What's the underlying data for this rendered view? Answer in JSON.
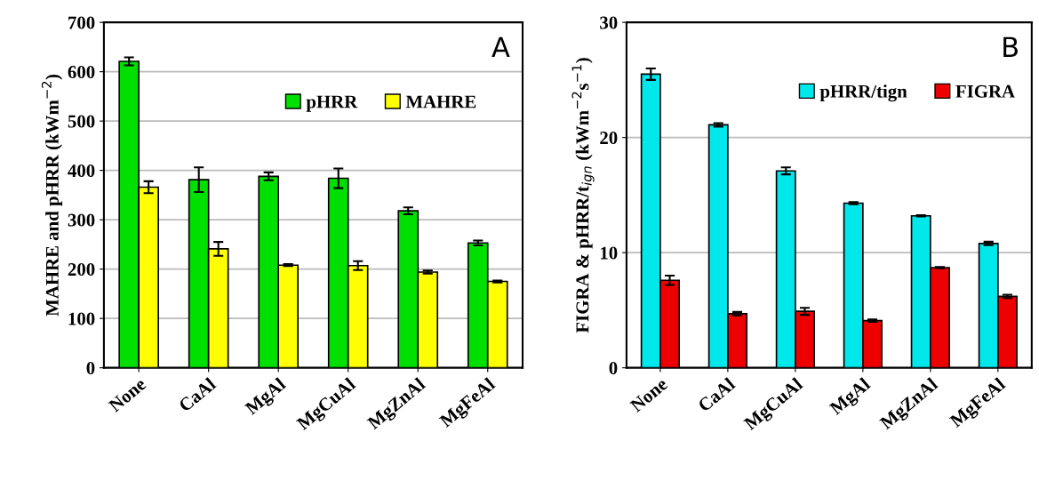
{
  "chart_data": [
    {
      "type": "bar",
      "annotations": [
        "A"
      ],
      "ylabel": "MAHRE and pHRR (kWm$^{−2}$)",
      "categories": [
        "None",
        "CaAl",
        "MgAl",
        "MgCuAl",
        "MgZnAl",
        "MgFeAl"
      ],
      "series": [
        {
          "name": "pHRR",
          "color": "#00e000",
          "values": [
            621,
            381,
            388,
            384,
            318,
            253
          ],
          "errors": [
            8,
            25,
            8,
            20,
            7,
            5
          ]
        },
        {
          "name": "MAHRE",
          "color": "#ffff00",
          "values": [
            366,
            241,
            208,
            207,
            194,
            175
          ],
          "errors": [
            12,
            14,
            2,
            9,
            3,
            2
          ]
        }
      ],
      "ylim": [
        0,
        700
      ],
      "yticks": [
        0,
        100,
        200,
        300,
        400,
        500,
        600,
        700
      ],
      "grid": "y",
      "legend": "top right"
    },
    {
      "type": "bar",
      "annotations": [
        "B"
      ],
      "ylabel": "FIGRA & pHRR/t$_{ign}$ (kWm$^{−2}$s$^{−1}$)",
      "categories": [
        "None",
        "CaAl",
        "MgCuAl",
        "MgAl",
        "MgZnAl",
        "MgFeAl"
      ],
      "series": [
        {
          "name": "pHRR/tign",
          "color": "#00e8ec",
          "values": [
            25.5,
            21.1,
            17.1,
            14.3,
            13.2,
            10.8
          ],
          "errors": [
            0.5,
            0.15,
            0.3,
            0.1,
            0.05,
            0.15
          ]
        },
        {
          "name": "FIGRA",
          "color": "#ee0000",
          "values": [
            7.6,
            4.7,
            4.9,
            4.1,
            8.7,
            6.2
          ],
          "errors": [
            0.4,
            0.15,
            0.3,
            0.1,
            0.05,
            0.15
          ]
        }
      ],
      "ylim": [
        0,
        30
      ],
      "yticks": [
        0,
        10,
        20,
        30
      ],
      "grid": "y",
      "legend": "top right"
    }
  ]
}
